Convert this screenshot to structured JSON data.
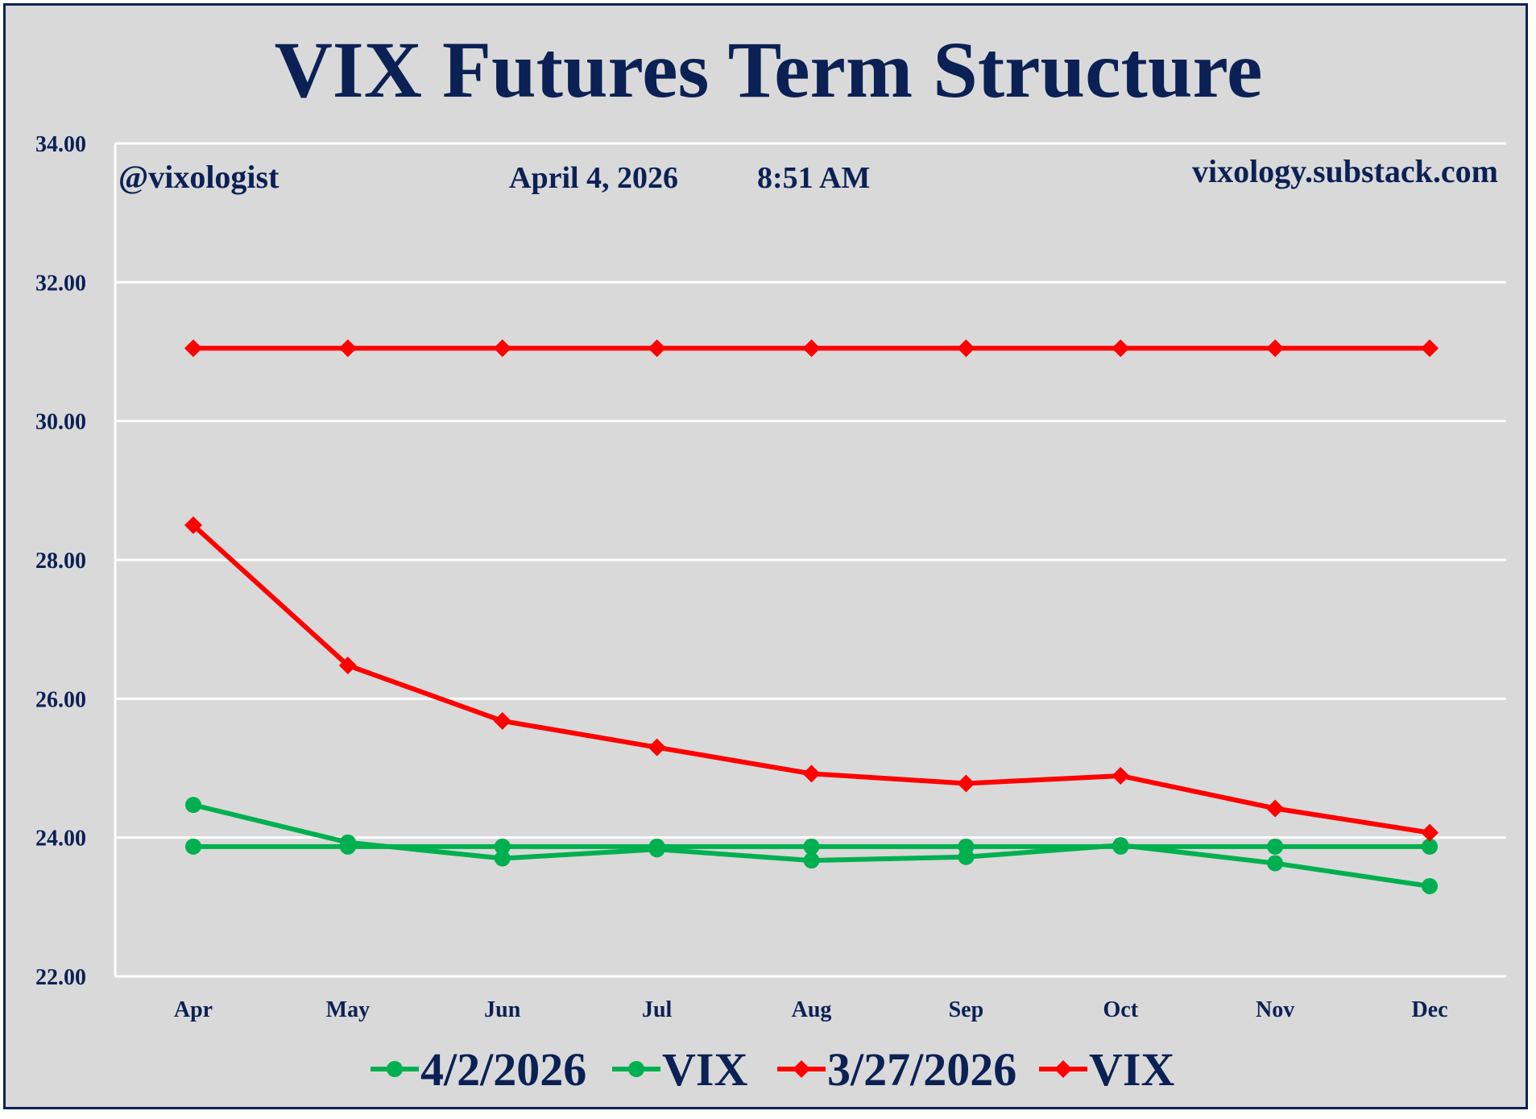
{
  "chart_data": {
    "type": "line",
    "title": "VIX Futures Term Structure",
    "annotations": {
      "handle": "@vixologist",
      "date": "April 4, 2026",
      "time": "8:51 AM",
      "site": "vixology.substack.com"
    },
    "categories": [
      "Apr",
      "May",
      "Jun",
      "Jul",
      "Aug",
      "Sep",
      "Oct",
      "Nov",
      "Dec"
    ],
    "y_ticks": [
      "22.00",
      "24.00",
      "26.00",
      "28.00",
      "30.00",
      "32.00",
      "34.00"
    ],
    "ylim": [
      22,
      34
    ],
    "grid": true,
    "legend_position": "bottom",
    "series": [
      {
        "name": "4/2/2026",
        "color": "#00b050",
        "marker": "circle",
        "values": [
          24.47,
          23.93,
          23.7,
          23.83,
          23.67,
          23.72,
          23.89,
          23.63,
          23.3
        ]
      },
      {
        "name": "VIX",
        "color": "#00b050",
        "marker": "circle",
        "values": [
          23.87,
          23.87,
          23.87,
          23.87,
          23.87,
          23.87,
          23.87,
          23.87,
          23.87
        ]
      },
      {
        "name": "3/27/2026",
        "color": "#ff0000",
        "marker": "diamond",
        "values": [
          28.5,
          26.48,
          25.68,
          25.3,
          24.92,
          24.78,
          24.89,
          24.42,
          24.07
        ]
      },
      {
        "name": "VIX",
        "color": "#ff0000",
        "marker": "diamond",
        "values": [
          31.05,
          31.05,
          31.05,
          31.05,
          31.05,
          31.05,
          31.05,
          31.05,
          31.05
        ]
      }
    ]
  }
}
